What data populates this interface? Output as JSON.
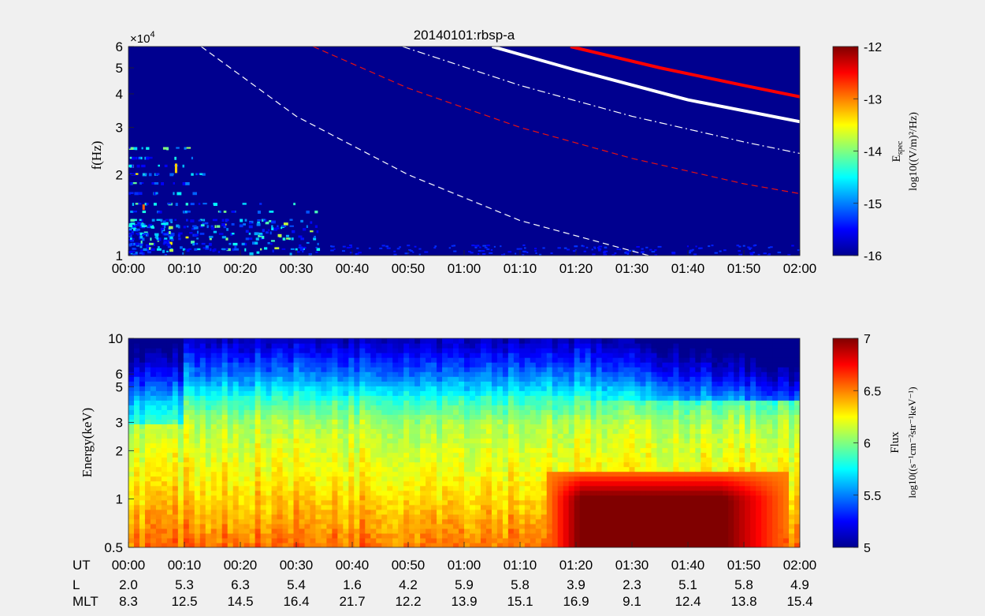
{
  "chart_data": [
    {
      "type": "heatmap",
      "title": "20140101:rbsp-a",
      "ylabel": "f(Hz)",
      "exponent_label": "×10",
      "exponent_power": "4",
      "x_ticks": [
        "00:00",
        "00:10",
        "00:20",
        "00:30",
        "00:40",
        "00:50",
        "01:00",
        "01:10",
        "01:20",
        "01:30",
        "01:40",
        "01:50",
        "02:00"
      ],
      "y_ticks": [
        "1",
        "2",
        "3",
        "4",
        "5",
        "6"
      ],
      "y_scale": "log",
      "ylim": [
        1,
        6
      ],
      "xlim_minutes": [
        0,
        120
      ],
      "colorbar": {
        "label": "E_spec",
        "label_main": "E",
        "label_sub": "spec",
        "unit_label": "log10((V/m)²/Hz)",
        "ticks": [
          "-12",
          "-13",
          "-14",
          "-15",
          "-16"
        ],
        "range": [
          -16,
          -12
        ],
        "colormap": "jet"
      },
      "background_color": "#00008f",
      "curves": [
        {
          "style": "dashed",
          "color": "#ffffff",
          "width": 1.2,
          "x": [
            13,
            30,
            50,
            70,
            93
          ],
          "y": [
            6.0,
            3.3,
            2.0,
            1.35,
            1.0
          ]
        },
        {
          "style": "dashed",
          "color": "#e81010",
          "width": 1.2,
          "x": [
            33,
            50,
            70,
            90,
            110,
            120
          ],
          "y": [
            6.0,
            4.2,
            3.0,
            2.3,
            1.85,
            1.7
          ]
        },
        {
          "style": "dashdot",
          "color": "#ffffff",
          "width": 1.2,
          "x": [
            49,
            70,
            90,
            110,
            120
          ],
          "y": [
            6.0,
            4.3,
            3.3,
            2.65,
            2.4
          ]
        },
        {
          "style": "solid",
          "color": "#ffffff",
          "width": 4,
          "x": [
            65,
            80,
            100,
            120
          ],
          "y": [
            6.0,
            4.9,
            3.8,
            3.15
          ]
        },
        {
          "style": "solid",
          "color": "#ff0000",
          "width": 4,
          "x": [
            79,
            95,
            110,
            120
          ],
          "y": [
            6.0,
            5.0,
            4.3,
            3.9
          ]
        }
      ]
    },
    {
      "type": "heatmap",
      "ylabel": "Energy(keV)",
      "x_ticks": [
        "00:00",
        "00:10",
        "00:20",
        "00:30",
        "00:40",
        "00:50",
        "01:00",
        "01:10",
        "01:20",
        "01:30",
        "01:40",
        "01:50",
        "02:00"
      ],
      "y_ticks": [
        "0.5",
        "1",
        "2",
        "3",
        "5",
        "6",
        "10"
      ],
      "y_scale": "log",
      "ylim": [
        0.5,
        10
      ],
      "xlim_minutes": [
        0,
        120
      ],
      "colorbar": {
        "label": "Flux",
        "unit_label": "log10((s⁻¹cm⁻²str⁻¹keV⁻¹)",
        "ticks": [
          "7",
          "6.5",
          "6",
          "5.5",
          "5"
        ],
        "range": [
          5,
          7
        ],
        "colormap": "jet"
      },
      "flux_profile": {
        "energy_keV": [
          10,
          6,
          4,
          3,
          2,
          1.5,
          1,
          0.7,
          0.5
        ],
        "log_flux_typical": [
          5.1,
          5.5,
          5.9,
          6.1,
          6.2,
          6.25,
          6.35,
          6.45,
          6.55
        ],
        "max_log_flux": 7.0,
        "intense_region": {
          "t_start_min": 75,
          "t_end_min": 118,
          "e_low_keV": 0.5,
          "e_high_keV": 1.5,
          "peak_log_flux": 7.0
        }
      },
      "orbit_table": {
        "row_labels": [
          "UT",
          "L",
          "MLT"
        ],
        "UT": [
          "00:00",
          "00:10",
          "00:20",
          "00:30",
          "00:40",
          "00:50",
          "01:00",
          "01:10",
          "01:20",
          "01:30",
          "01:40",
          "01:50",
          "02:00"
        ],
        "L": [
          "2.0",
          "5.3",
          "6.3",
          "5.4",
          "1.6",
          "4.2",
          "5.9",
          "5.8",
          "3.9",
          "2.3",
          "5.1",
          "5.8",
          "4.9"
        ],
        "MLT": [
          "8.3",
          "12.5",
          "14.5",
          "16.4",
          "21.7",
          "12.2",
          "13.9",
          "15.1",
          "16.9",
          "9.1",
          "12.4",
          "13.8",
          "15.4"
        ]
      }
    }
  ]
}
